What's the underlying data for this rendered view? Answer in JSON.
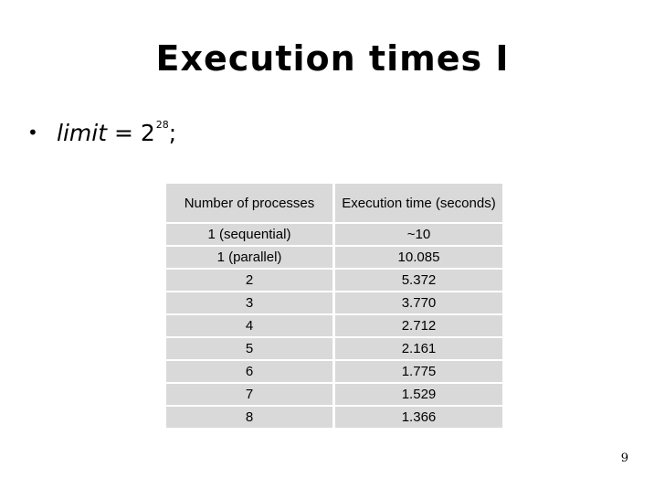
{
  "slide": {
    "title": "Execution times I",
    "page_number": "9"
  },
  "bullet": {
    "marker": "•",
    "variable": "limit",
    "equals": " = 2",
    "exponent": "28",
    "suffix": ";"
  },
  "table": {
    "headers": [
      "Number of processes",
      "Execution time (seconds)"
    ],
    "rows": [
      [
        "1 (sequential)",
        "~10"
      ],
      [
        "1 (parallel)",
        "10.085"
      ],
      [
        "2",
        "5.372"
      ],
      [
        "3",
        "3.770"
      ],
      [
        "4",
        "2.712"
      ],
      [
        "5",
        "2.161"
      ],
      [
        "6",
        "1.775"
      ],
      [
        "7",
        "1.529"
      ],
      [
        "8",
        "1.366"
      ]
    ]
  }
}
